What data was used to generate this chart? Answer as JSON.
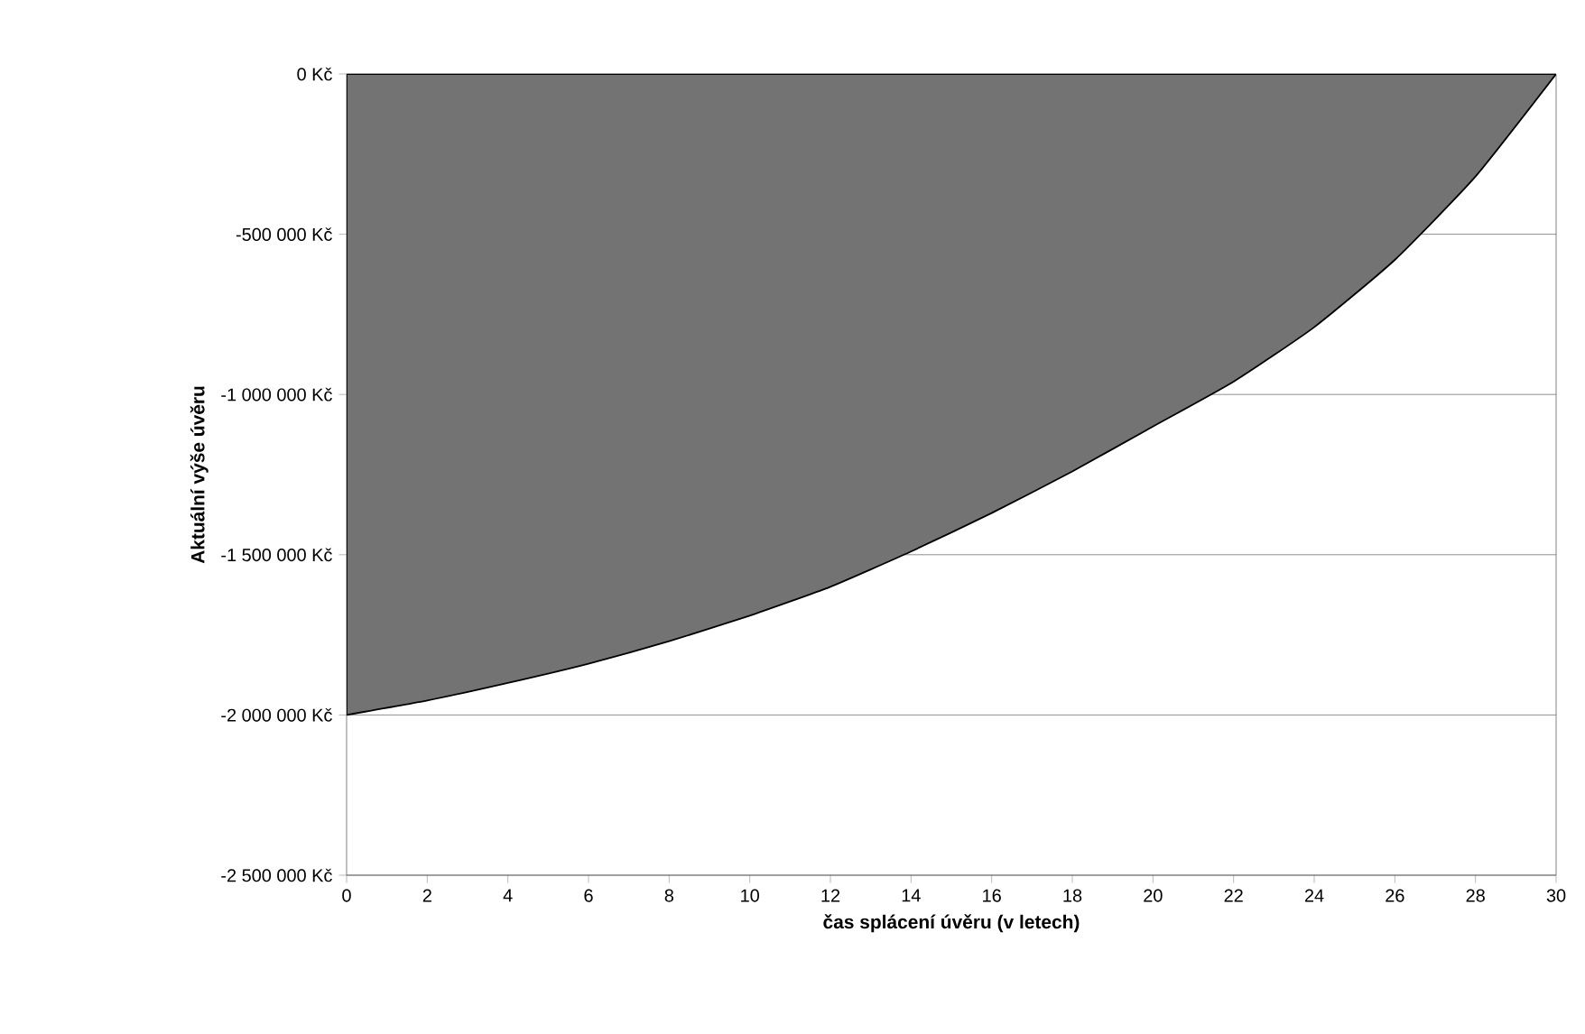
{
  "chart_data": {
    "type": "area",
    "xlabel": "čas splácení úvěru (v letech)",
    "ylabel": "Aktuální výše úvěru",
    "x": [
      0,
      2,
      4,
      6,
      8,
      10,
      12,
      14,
      16,
      18,
      20,
      22,
      24,
      26,
      28,
      30
    ],
    "series": [
      {
        "color": "#737373",
        "values": [
          -2000000,
          -1955000,
          -1900000,
          -1840000,
          -1770000,
          -1690000,
          -1600000,
          -1490000,
          -1370000,
          -1240000,
          -1100000,
          -960000,
          -790000,
          -580000,
          -320000,
          0
        ]
      }
    ],
    "xlim": [
      0,
      30
    ],
    "xticks": [
      0,
      2,
      4,
      6,
      8,
      10,
      12,
      14,
      16,
      18,
      20,
      22,
      24,
      26,
      28,
      30
    ],
    "ylim": [
      -2500000,
      0
    ],
    "yticks": [
      {
        "value": -2500000,
        "label": "-2 500 000 Kč"
      },
      {
        "value": -2000000,
        "label": "-2 000 000 Kč"
      },
      {
        "value": -1500000,
        "label": "-1 500 000 Kč"
      },
      {
        "value": -1000000,
        "label": "-1 000 000 Kč"
      },
      {
        "value": -500000,
        "label": "-500 000 Kč"
      },
      {
        "value": 0,
        "label": "0 Kč"
      }
    ],
    "grid": "y"
  }
}
